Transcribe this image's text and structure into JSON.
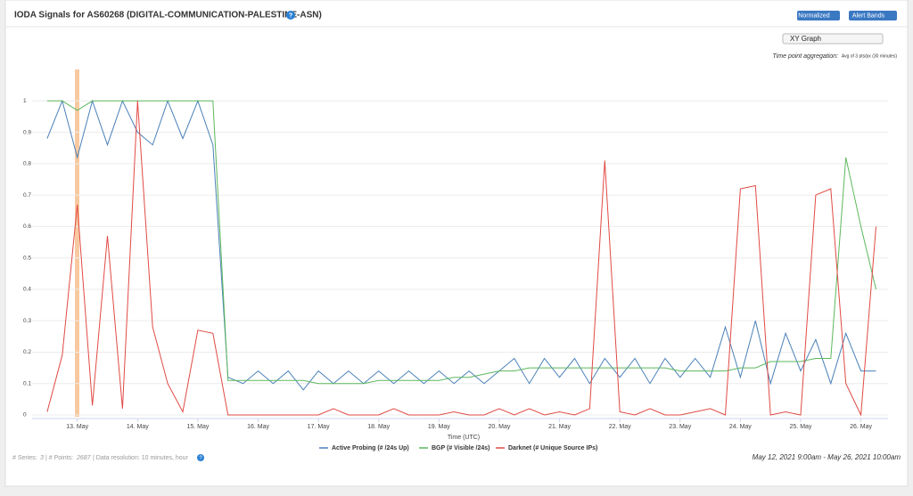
{
  "header": {
    "title": "IODA Signals for AS60268 (DIGITAL-COMMUNICATION-PALESTINE-ASN)",
    "help": "?",
    "buttons": [
      "Normalized",
      "Alert Bands"
    ]
  },
  "controls": {
    "view": "XY Graph",
    "aggregation_label": "Time point aggregation:",
    "aggregation_value": "Avg of 3 pts/px (30 minutes)"
  },
  "footer": {
    "series_label": "# Series:",
    "series": "3",
    "points_label": "| # Points:",
    "points": "2687",
    "resolution": "| Data resolution: 10 minutes, hour",
    "help": "?",
    "range": "May 12, 2021 9:00am - May 26, 2021 10:00am"
  },
  "chart_data": {
    "type": "line",
    "x_label": "Time (UTC)",
    "x": [
      12.5,
      12.75,
      13,
      13.25,
      13.5,
      13.75,
      14,
      14.25,
      14.5,
      14.75,
      15,
      15.25,
      15.5,
      15.75,
      16,
      16.25,
      16.5,
      16.75,
      17,
      17.25,
      17.5,
      17.75,
      18,
      18.25,
      18.5,
      18.75,
      19,
      19.25,
      19.5,
      19.75,
      20,
      20.25,
      20.5,
      20.75,
      21,
      21.25,
      21.5,
      21.75,
      22,
      22.25,
      22.5,
      22.75,
      23,
      23.25,
      23.5,
      23.75,
      24,
      24.25,
      24.5,
      24.75,
      25,
      25.25,
      25.5,
      25.75,
      26,
      26.25
    ],
    "xlim": [
      12.25,
      26.45
    ],
    "xticks": [
      {
        "value": 13,
        "label": "13. May"
      },
      {
        "value": 14,
        "label": "14. May"
      },
      {
        "value": 15,
        "label": "15. May"
      },
      {
        "value": 16,
        "label": "16. May"
      },
      {
        "value": 17,
        "label": "17. May"
      },
      {
        "value": 18,
        "label": "18. May"
      },
      {
        "value": 19,
        "label": "19. May"
      },
      {
        "value": 20,
        "label": "20. May"
      },
      {
        "value": 21,
        "label": "21. May"
      },
      {
        "value": 22,
        "label": "22. May"
      },
      {
        "value": 23,
        "label": "23. May"
      },
      {
        "value": 24,
        "label": "24. May"
      },
      {
        "value": 25,
        "label": "25. May"
      },
      {
        "value": 26,
        "label": "26. May"
      }
    ],
    "ylim": [
      0,
      1.1
    ],
    "yticks": [
      0,
      0.1,
      0.2,
      0.3,
      0.4,
      0.5,
      0.6,
      0.7,
      0.8,
      0.9,
      1
    ],
    "grid": true,
    "series": [
      {
        "name": "Active Probing (# /24s Up)",
        "color": "#4a80b8",
        "values": [
          0.88,
          1,
          0.82,
          1,
          0.86,
          1,
          0.9,
          0.86,
          1,
          0.88,
          1,
          0.86,
          0.12,
          0.1,
          0.14,
          0.1,
          0.14,
          0.08,
          0.14,
          0.1,
          0.14,
          0.1,
          0.14,
          0.1,
          0.14,
          0.1,
          0.14,
          0.1,
          0.14,
          0.1,
          0.14,
          0.18,
          0.1,
          0.18,
          0.12,
          0.18,
          0.1,
          0.18,
          0.12,
          0.18,
          0.1,
          0.18,
          0.12,
          0.18,
          0.12,
          0.28,
          0.12,
          0.3,
          0.1,
          0.26,
          0.14,
          0.24,
          0.1,
          0.26,
          0.14,
          0.14
        ]
      },
      {
        "name": "BGP (# Visible /24s)",
        "color": "#5cb85c",
        "values": [
          1,
          1,
          0.97,
          1,
          1,
          1,
          1,
          1,
          1,
          1,
          1,
          1,
          0.11,
          0.11,
          0.11,
          0.11,
          0.11,
          0.11,
          0.1,
          0.1,
          0.1,
          0.1,
          0.11,
          0.11,
          0.11,
          0.11,
          0.11,
          0.12,
          0.12,
          0.13,
          0.14,
          0.14,
          0.15,
          0.15,
          0.15,
          0.15,
          0.15,
          0.15,
          0.15,
          0.15,
          0.15,
          0.15,
          0.14,
          0.14,
          0.14,
          0.14,
          0.15,
          0.15,
          0.17,
          0.17,
          0.17,
          0.18,
          0.18,
          0.82,
          0.6,
          0.4
        ]
      },
      {
        "name": "Darknet (# Unique Source IPs)",
        "color": "#e04a44",
        "values": [
          0.01,
          0.19,
          0.67,
          0.03,
          0.57,
          0.02,
          1,
          0.28,
          0.1,
          0.01,
          0.27,
          0.26,
          0,
          0,
          0,
          0,
          0,
          0,
          0,
          0.02,
          0,
          0,
          0,
          0.02,
          0,
          0,
          0,
          0.01,
          0,
          0,
          0.02,
          0,
          0.02,
          0,
          0.01,
          0,
          0.02,
          0.81,
          0.01,
          0,
          0.02,
          0,
          0,
          0.01,
          0.02,
          0,
          0.72,
          0.73,
          0,
          0.01,
          0,
          0.7,
          0.72,
          0.1,
          0,
          0.6
        ]
      }
    ]
  }
}
